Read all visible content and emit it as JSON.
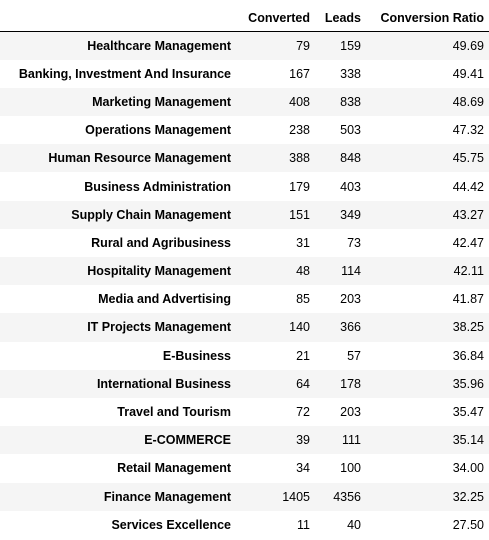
{
  "table": {
    "index_header": "",
    "columns": [
      "Converted",
      "Leads",
      "Conversion Ratio"
    ],
    "rows": [
      {
        "label": "Healthcare Management",
        "converted": "79",
        "leads": "159",
        "ratio": "49.69"
      },
      {
        "label": "Banking, Investment And Insurance",
        "converted": "167",
        "leads": "338",
        "ratio": "49.41"
      },
      {
        "label": "Marketing Management",
        "converted": "408",
        "leads": "838",
        "ratio": "48.69"
      },
      {
        "label": "Operations Management",
        "converted": "238",
        "leads": "503",
        "ratio": "47.32"
      },
      {
        "label": "Human Resource Management",
        "converted": "388",
        "leads": "848",
        "ratio": "45.75"
      },
      {
        "label": "Business Administration",
        "converted": "179",
        "leads": "403",
        "ratio": "44.42"
      },
      {
        "label": "Supply Chain Management",
        "converted": "151",
        "leads": "349",
        "ratio": "43.27"
      },
      {
        "label": "Rural and Agribusiness",
        "converted": "31",
        "leads": "73",
        "ratio": "42.47"
      },
      {
        "label": "Hospitality Management",
        "converted": "48",
        "leads": "114",
        "ratio": "42.11"
      },
      {
        "label": "Media and Advertising",
        "converted": "85",
        "leads": "203",
        "ratio": "41.87"
      },
      {
        "label": "IT Projects Management",
        "converted": "140",
        "leads": "366",
        "ratio": "38.25"
      },
      {
        "label": "E-Business",
        "converted": "21",
        "leads": "57",
        "ratio": "36.84"
      },
      {
        "label": "International Business",
        "converted": "64",
        "leads": "178",
        "ratio": "35.96"
      },
      {
        "label": "Travel and Tourism",
        "converted": "72",
        "leads": "203",
        "ratio": "35.47"
      },
      {
        "label": "E-COMMERCE",
        "converted": "39",
        "leads": "111",
        "ratio": "35.14"
      },
      {
        "label": "Retail Management",
        "converted": "34",
        "leads": "100",
        "ratio": "34.00"
      },
      {
        "label": "Finance Management",
        "converted": "1405",
        "leads": "4356",
        "ratio": "32.25"
      },
      {
        "label": "Services Excellence",
        "converted": "11",
        "leads": "40",
        "ratio": "27.50"
      }
    ]
  }
}
